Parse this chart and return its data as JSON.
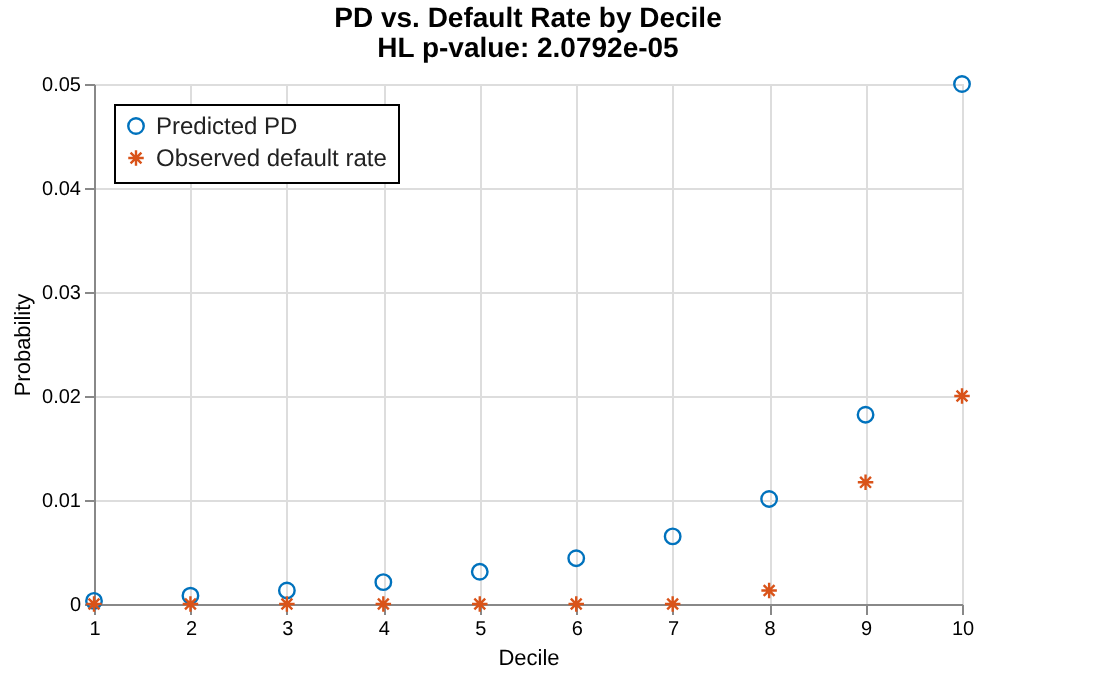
{
  "chart_data": {
    "type": "scatter",
    "title": "PD vs. Default Rate by Decile",
    "subtitle": "HL p-value: 2.0792e-05",
    "xlabel": "Decile",
    "ylabel": "Probability",
    "x": [
      1,
      2,
      3,
      4,
      5,
      6,
      7,
      8,
      9,
      10
    ],
    "series": [
      {
        "name": "Predicted PD",
        "color": "#0072bd",
        "marker": "circle",
        "values": [
          0.0003,
          0.0008,
          0.0013,
          0.0021,
          0.0031,
          0.0044,
          0.0065,
          0.0101,
          0.0182,
          0.05
        ]
      },
      {
        "name": "Observed default rate",
        "color": "#d95319",
        "marker": "cross",
        "values": [
          0,
          0,
          0,
          0,
          0,
          0,
          0,
          0.0013,
          0.0117,
          0.02
        ]
      }
    ],
    "xlim": [
      1,
      10
    ],
    "xticks": [
      1,
      2,
      3,
      4,
      5,
      6,
      7,
      8,
      9,
      10
    ],
    "ylim": [
      0,
      0.05
    ],
    "yticks": [
      0,
      0.01,
      0.02,
      0.03,
      0.04,
      0.05
    ],
    "grid": true,
    "legend": "top left"
  }
}
